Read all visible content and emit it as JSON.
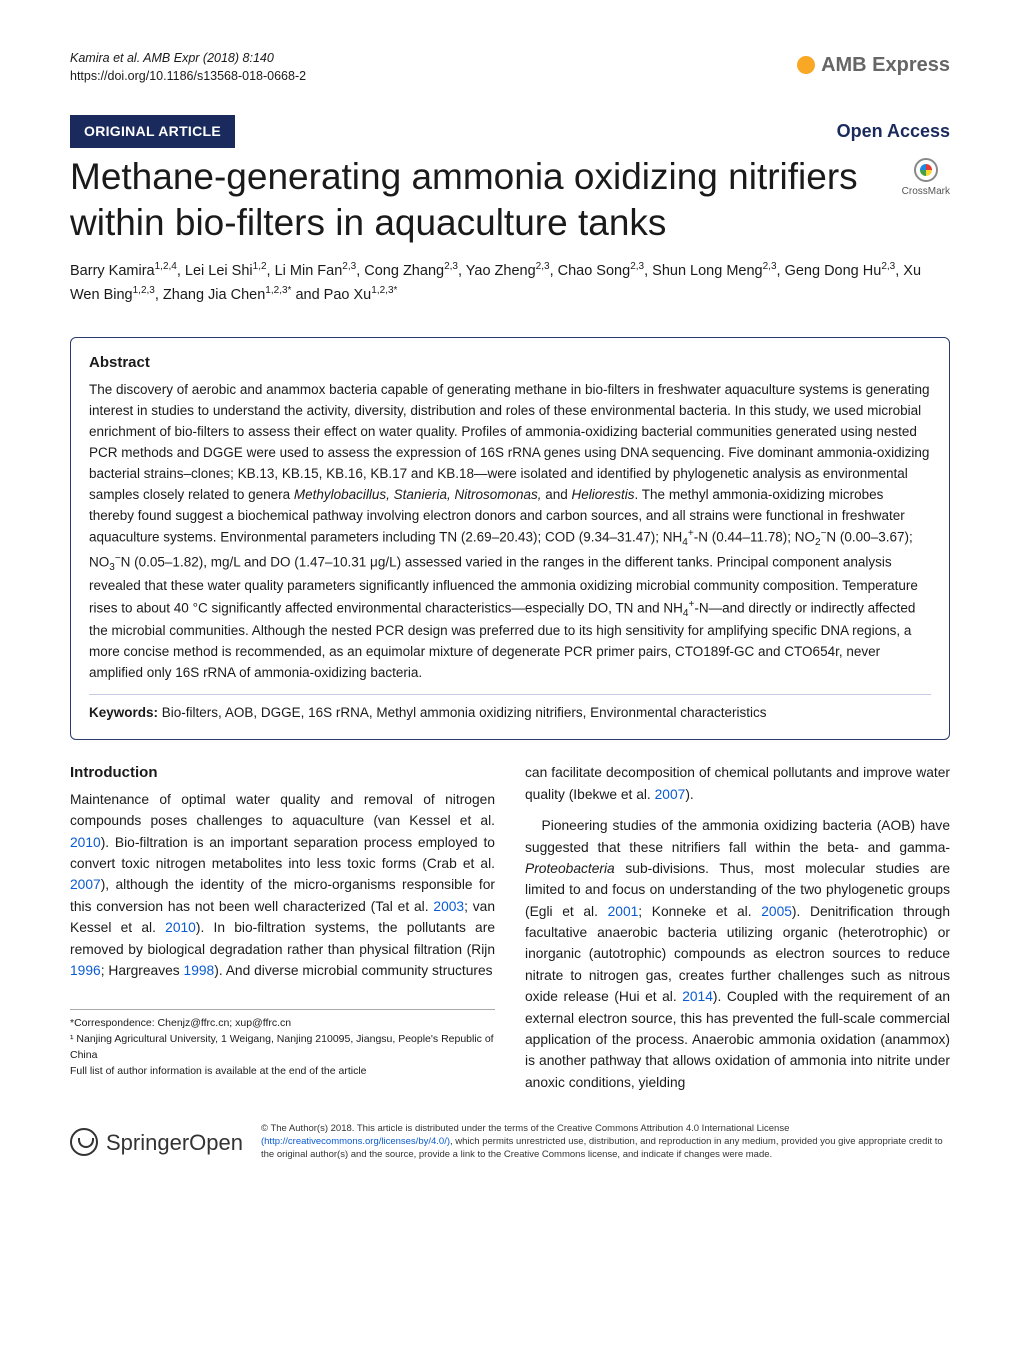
{
  "header": {
    "citation": "Kamira et al. AMB Expr  (2018) 8:140",
    "doi": "https://doi.org/10.1186/s13568-018-0668-2",
    "journal_name": "AMB Express"
  },
  "badges": {
    "article_type": "ORIGINAL ARTICLE",
    "open_access": "Open Access",
    "crossmark": "CrossMark"
  },
  "title": "Methane-generating ammonia oxidizing nitrifiers within bio-filters in aquaculture tanks",
  "authors_html": "Barry Kamira<sup>1,2,4</sup>, Lei Lei Shi<sup>1,2</sup>, Li Min Fan<sup>2,3</sup>, Cong Zhang<sup>2,3</sup>, Yao Zheng<sup>2,3</sup>, Chao Song<sup>2,3</sup>, Shun Long Meng<sup>2,3</sup>, Geng Dong Hu<sup>2,3</sup>, Xu Wen Bing<sup>1,2,3</sup>, Zhang Jia Chen<sup>1,2,3*</sup> and Pao Xu<sup>1,2,3*</sup>",
  "abstract": {
    "heading": "Abstract",
    "text_html": "The discovery of aerobic and anammox bacteria capable of generating methane in bio-filters in freshwater aquaculture systems is generating interest in studies to understand the activity, diversity, distribution and roles of these environmental bacteria. In this study, we used microbial enrichment of bio-filters to assess their effect on water quality. Profiles of ammonia-oxidizing bacterial communities generated using nested PCR methods and DGGE were used to assess the expression of 16S rRNA genes using DNA sequencing. Five dominant ammonia-oxidizing bacterial strains–clones; KB.13, KB.15, KB.16, KB.17 and KB.18—were isolated and identified by phylogenetic analysis as environmental samples closely related to genera <i>Methylobacillus, Stanieria, Nitrosomonas,</i> and <i>Heliorestis</i>. The methyl ammonia-oxidizing microbes thereby found suggest a biochemical pathway involving electron donors and carbon sources, and all strains were functional in freshwater aquaculture systems. Environmental parameters including TN (2.69–20.43); COD (9.34–31.47); NH<sub>4</sub><sup>+</sup>-N (0.44–11.78); NO<sub>2</sub><sup>−</sup>N (0.00–3.67); NO<sub>3</sub><sup>−</sup>N (0.05–1.82), mg/L and DO (1.47–10.31 μg/L) assessed varied in the ranges in the different tanks. Principal component analysis revealed that these water quality parameters significantly influenced the ammonia oxidizing microbial community composition. Temperature rises to about 40 °C significantly affected environmental characteristics—especially DO, TN and NH<sub>4</sub><sup>+</sup>-N—and directly or indirectly affected the microbial communities. Although the nested PCR design was preferred due to its high sensitivity for amplifying specific DNA regions, a more concise method is recommended, as an equimolar mixture of degenerate PCR primer pairs, CTO189f-GC and CTO654r, never amplified only 16S rRNA of ammonia-oxidizing bacteria.",
    "keywords_label": "Keywords:",
    "keywords": "Bio-filters, AOB, DGGE, 16S rRNA, Methyl ammonia oxidizing nitrifiers, Environmental characteristics"
  },
  "introduction": {
    "heading": "Introduction",
    "left_html": "Maintenance of optimal water quality and removal of nitrogen compounds poses challenges to aquaculture (van Kessel et al. <span class=\"cite-year\">2010</span>). Bio-filtration is an important separation process employed to convert toxic nitrogen metabolites into less toxic forms (Crab et al. <span class=\"cite-year\">2007</span>), although the identity of the micro-organisms responsible for this conversion has not been well characterized (Tal et al. <span class=\"cite-year\">2003</span>; van Kessel et al. <span class=\"cite-year\">2010</span>). In bio-filtration systems, the pollutants are removed by biological degradation rather than physical filtration (Rijn <span class=\"cite-year\">1996</span>; Hargreaves <span class=\"cite-year\">1998</span>). And diverse microbial community structures",
    "right_top_html": "can facilitate decomposition of chemical pollutants and improve water quality (Ibekwe et al. <span class=\"cite-year\">2007</span>).",
    "right_html": "Pioneering studies of the ammonia oxidizing bacteria (AOB) have suggested that these nitrifiers fall within the beta- and gamma-<i>Proteobacteria</i> sub-divisions. Thus, most molecular studies are limited to and focus on understanding of the two phylogenetic groups (Egli et al. <span class=\"cite-year\">2001</span>; Konneke et al. <span class=\"cite-year\">2005</span>). Denitrification through facultative anaerobic bacteria utilizing organic (heterotrophic) or inorganic (autotrophic) compounds as electron sources to reduce nitrate to nitrogen gas, creates further challenges such as nitrous oxide release (Hui et al. <span class=\"cite-year\">2014</span>). Coupled with the requirement of an external electron source, this has prevented the full-scale commercial application of the process. Anaerobic ammonia oxidation (anammox) is another pathway that allows oxidation of ammonia into nitrite under anoxic conditions, yielding"
  },
  "footnotes": {
    "correspondence": "*Correspondence:  Chenjz@ffrc.cn; xup@ffrc.cn",
    "affiliation1": "¹ Nanjing Agricultural University, 1 Weigang, Nanjing 210095, Jiangsu, People's Republic of China",
    "affil_note": "Full list of author information is available at the end of the article"
  },
  "footer": {
    "springer": "Springer",
    "springer_open": "Open",
    "license_html": "© The Author(s) 2018. This article is distributed under the terms of the Creative Commons Attribution 4.0 International License <span class=\"license-link\">(http://creativecommons.org/licenses/by/4.0/)</span>, which permits unrestricted use, distribution, and reproduction in any medium, provided you give appropriate credit to the original author(s) and the source, provide a link to the Creative Commons license, and indicate if changes were made."
  },
  "colors": {
    "brand_dark": "#1a2a5c",
    "accent_orange": "#f9a825",
    "link_blue": "#0a5bd3"
  }
}
